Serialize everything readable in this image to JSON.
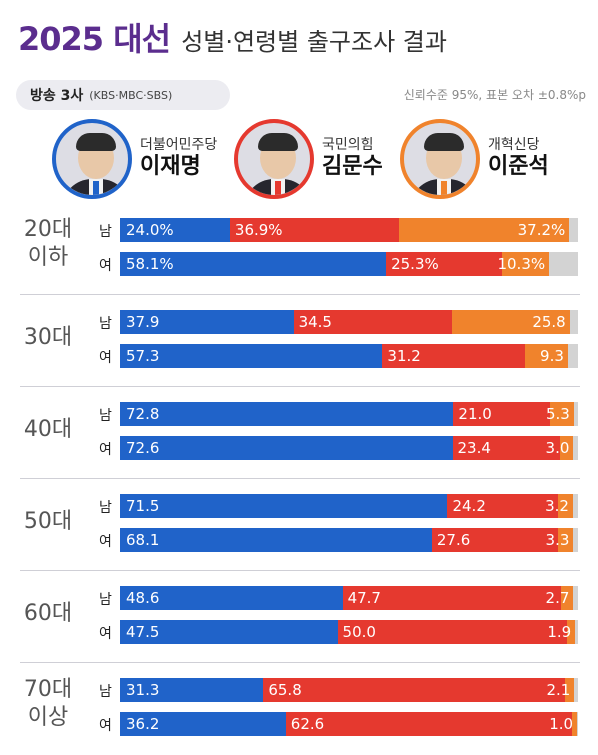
{
  "header": {
    "year": "2025 대선",
    "subtitle": "성별·연령별 출구조사 결과"
  },
  "source": {
    "label": "방송 3사",
    "networks": "(KBS·MBC·SBS)"
  },
  "confidence_note": "신뢰수준 95%, 표본 오차 ±0.8%p",
  "colors": {
    "lee": "#2063c9",
    "kim": "#e5392f",
    "lee_js": "#f0832c",
    "other": "#d3d3d3"
  },
  "candidates": [
    {
      "party": "더불어민주당",
      "name": "이재명",
      "color": "#2063c9",
      "icon": "candidate-photo"
    },
    {
      "party": "국민의힘",
      "name": "김문수",
      "color": "#e5392f",
      "icon": "candidate-photo"
    },
    {
      "party": "개혁신당",
      "name": "이준석",
      "color": "#f0832c",
      "icon": "candidate-photo"
    }
  ],
  "chart_data": {
    "type": "bar",
    "stacked": true,
    "orientation": "horizontal",
    "series_names": [
      "이재명",
      "김문수",
      "이준석"
    ],
    "groups": [
      {
        "label": "20대\n이하",
        "rows": [
          {
            "gender": "남",
            "values": [
              24.0,
              36.9,
              37.2
            ],
            "labels": [
              "24.0%",
              "36.9%",
              "37.2%"
            ]
          },
          {
            "gender": "여",
            "values": [
              58.1,
              25.3,
              10.3
            ],
            "labels": [
              "58.1%",
              "25.3%",
              "10.3%"
            ]
          }
        ]
      },
      {
        "label": "30대",
        "rows": [
          {
            "gender": "남",
            "values": [
              37.9,
              34.5,
              25.8
            ],
            "labels": [
              "37.9",
              "34.5",
              "25.8"
            ]
          },
          {
            "gender": "여",
            "values": [
              57.3,
              31.2,
              9.3
            ],
            "labels": [
              "57.3",
              "31.2",
              "9.3"
            ]
          }
        ]
      },
      {
        "label": "40대",
        "rows": [
          {
            "gender": "남",
            "values": [
              72.8,
              21.0,
              5.3
            ],
            "labels": [
              "72.8",
              "21.0",
              "5.3"
            ]
          },
          {
            "gender": "여",
            "values": [
              72.6,
              23.4,
              3.0
            ],
            "labels": [
              "72.6",
              "23.4",
              "3.0"
            ]
          }
        ]
      },
      {
        "label": "50대",
        "rows": [
          {
            "gender": "남",
            "values": [
              71.5,
              24.2,
              3.2
            ],
            "labels": [
              "71.5",
              "24.2",
              "3.2"
            ]
          },
          {
            "gender": "여",
            "values": [
              68.1,
              27.6,
              3.3
            ],
            "labels": [
              "68.1",
              "27.6",
              "3.3"
            ]
          }
        ]
      },
      {
        "label": "60대",
        "rows": [
          {
            "gender": "남",
            "values": [
              48.6,
              47.7,
              2.7
            ],
            "labels": [
              "48.6",
              "47.7",
              "2.7"
            ]
          },
          {
            "gender": "여",
            "values": [
              47.5,
              50.0,
              1.9
            ],
            "labels": [
              "47.5",
              "50.0",
              "1.9"
            ]
          }
        ]
      },
      {
        "label": "70대\n이상",
        "rows": [
          {
            "gender": "남",
            "values": [
              31.3,
              65.8,
              2.1
            ],
            "labels": [
              "31.3",
              "65.8",
              "2.1"
            ]
          },
          {
            "gender": "여",
            "values": [
              36.2,
              62.6,
              1.0
            ],
            "labels": [
              "36.2",
              "62.6",
              "1.0"
            ]
          }
        ]
      }
    ]
  }
}
